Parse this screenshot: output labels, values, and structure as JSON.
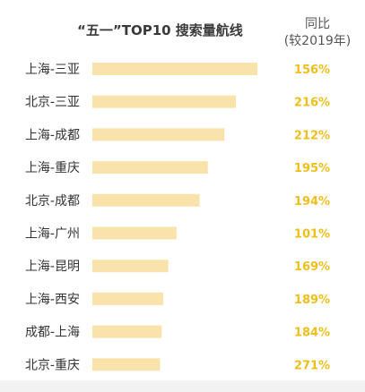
{
  "chart_data": {
    "type": "bar",
    "orientation": "horizontal",
    "title": "“五一”TOP10 搜索量航线",
    "yoy_header": [
      "同比",
      "(较2019年)"
    ],
    "categories": [
      "上海-三亚",
      "北京-三亚",
      "上海-成都",
      "上海-重庆",
      "北京-成都",
      "上海-广州",
      "上海-昆明",
      "上海-西安",
      "成都-上海",
      "北京-重庆"
    ],
    "values": [
      100,
      87,
      80,
      70,
      65,
      51,
      46,
      43,
      42,
      41
    ],
    "yoy_labels": [
      "156%",
      "216%",
      "212%",
      "195%",
      "194%",
      "101%",
      "169%",
      "189%",
      "184%",
      "271%"
    ],
    "value_axis_shown": false,
    "grid": false,
    "legend": "none"
  },
  "colors": {
    "bar": "#fae3ab",
    "pct_text": "#eebf1b",
    "label_text": "#333333"
  }
}
